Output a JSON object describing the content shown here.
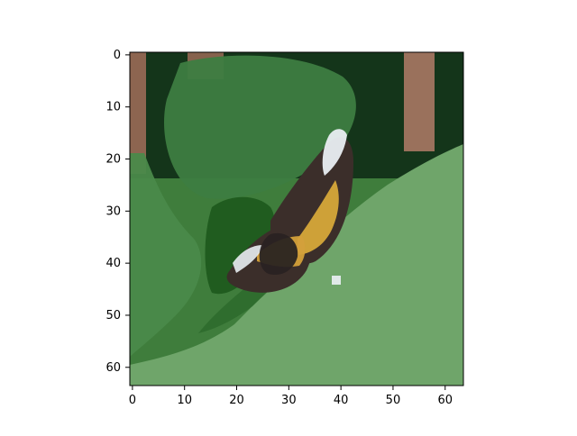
{
  "figure": {
    "kind": "imshow",
    "image_subject": "butterfly-on-leaf",
    "image_resolution": [
      64,
      64
    ],
    "x_axis": {
      "ticks": [
        "0",
        "10",
        "20",
        "30",
        "40",
        "50",
        "60"
      ],
      "tick_values": [
        0,
        10,
        20,
        30,
        40,
        50,
        60
      ],
      "range": [
        -0.5,
        63.5
      ]
    },
    "y_axis": {
      "ticks": [
        "0",
        "10",
        "20",
        "30",
        "40",
        "50",
        "60"
      ],
      "tick_values": [
        0,
        10,
        20,
        30,
        40,
        50,
        60
      ],
      "range": [
        -0.5,
        63.5
      ]
    },
    "colors": {
      "axis": "#000000",
      "background": "#ffffff",
      "leaf_light": "#6fa56a",
      "leaf_dark": "#2f6a2e",
      "shadow": "#0f2a12",
      "trunk": "#9a6a57",
      "wing_dark": "#3a2d2a",
      "wing_gold": "#d6a83a",
      "wing_white": "#e9eef2"
    }
  }
}
